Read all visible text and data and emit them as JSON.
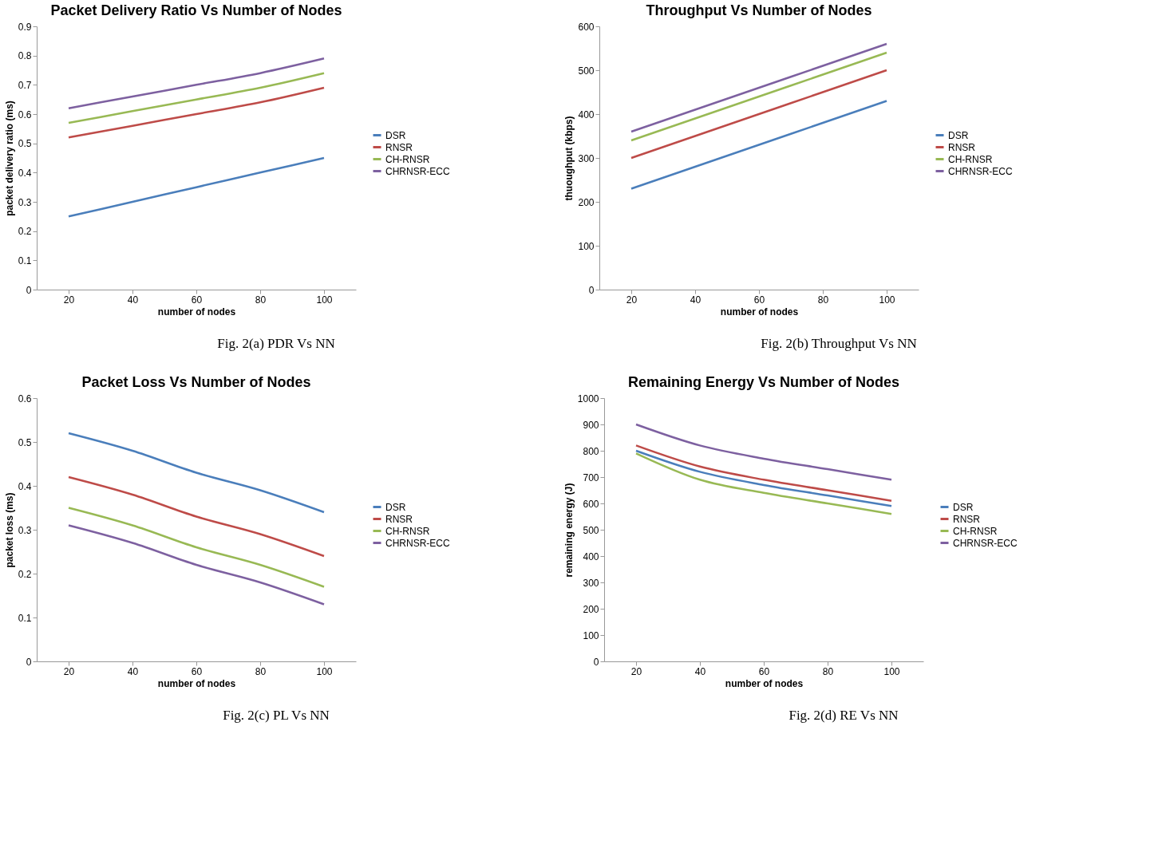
{
  "chart_data": [
    {
      "type": "line",
      "title": "Packet Delivery Ratio Vs Number of Nodes",
      "xlabel": "number of nodes",
      "ylabel": "packet delivery ratio (ms)",
      "categories": [
        "20",
        "40",
        "60",
        "80",
        "100"
      ],
      "ylim": [
        0,
        0.9
      ],
      "yticks": [
        0,
        0.1,
        0.2,
        0.3,
        0.4,
        0.5,
        0.6,
        0.7,
        0.8,
        0.9
      ],
      "legend": "right",
      "annotations": [
        "Fig. 2(a) PDR Vs NN"
      ],
      "series": [
        {
          "name": "DSR",
          "color": "#4a7ebb",
          "values": [
            0.25,
            0.3,
            0.35,
            0.4,
            0.45
          ]
        },
        {
          "name": "RNSR",
          "color": "#be4b48",
          "values": [
            0.52,
            0.56,
            0.6,
            0.64,
            0.69
          ]
        },
        {
          "name": "CH-RNSR",
          "color": "#98b954",
          "values": [
            0.57,
            0.61,
            0.65,
            0.69,
            0.74
          ]
        },
        {
          "name": "CHRNSR-ECC",
          "color": "#7d60a0",
          "values": [
            0.62,
            0.66,
            0.7,
            0.74,
            0.79
          ]
        }
      ]
    },
    {
      "type": "line",
      "title": "Throughput Vs Number of Nodes",
      "xlabel": "number of nodes",
      "ylabel": "thuoughput (kbps)",
      "categories": [
        "20",
        "40",
        "60",
        "80",
        "100"
      ],
      "ylim": [
        0,
        600
      ],
      "yticks": [
        0,
        100,
        200,
        300,
        400,
        500,
        600
      ],
      "legend": "right",
      "annotations": [
        "Fig. 2(b) Throughput Vs NN"
      ],
      "series": [
        {
          "name": "DSR",
          "color": "#4a7ebb",
          "values": [
            230,
            280,
            330,
            380,
            430
          ]
        },
        {
          "name": "RNSR",
          "color": "#be4b48",
          "values": [
            300,
            350,
            400,
            450,
            500
          ]
        },
        {
          "name": "CH-RNSR",
          "color": "#98b954",
          "values": [
            340,
            390,
            440,
            490,
            540
          ]
        },
        {
          "name": "CHRNSR-ECC",
          "color": "#7d60a0",
          "values": [
            360,
            410,
            460,
            510,
            560
          ]
        }
      ]
    },
    {
      "type": "line",
      "title": "Packet Loss Vs Number of Nodes",
      "xlabel": "number of nodes",
      "ylabel": "packet loss (ms)",
      "categories": [
        "20",
        "40",
        "60",
        "80",
        "100"
      ],
      "ylim": [
        0,
        0.6
      ],
      "yticks": [
        0,
        0.1,
        0.2,
        0.3,
        0.4,
        0.5,
        0.6
      ],
      "legend": "right",
      "annotations": [
        "Fig. 2(c) PL Vs NN"
      ],
      "series": [
        {
          "name": "DSR",
          "color": "#4a7ebb",
          "values": [
            0.52,
            0.48,
            0.43,
            0.39,
            0.34
          ]
        },
        {
          "name": "RNSR",
          "color": "#be4b48",
          "values": [
            0.42,
            0.38,
            0.33,
            0.29,
            0.24
          ]
        },
        {
          "name": "CH-RNSR",
          "color": "#98b954",
          "values": [
            0.35,
            0.31,
            0.26,
            0.22,
            0.17
          ]
        },
        {
          "name": "CHRNSR-ECC",
          "color": "#7d60a0",
          "values": [
            0.31,
            0.27,
            0.22,
            0.18,
            0.13
          ]
        }
      ]
    },
    {
      "type": "line",
      "title": "Remaining Energy Vs Number of Nodes",
      "xlabel": "number of nodes",
      "ylabel": "remaining energy (J)",
      "categories": [
        "20",
        "40",
        "60",
        "80",
        "100"
      ],
      "ylim": [
        0,
        1000
      ],
      "yticks": [
        0,
        100,
        200,
        300,
        400,
        500,
        600,
        700,
        800,
        900,
        1000
      ],
      "legend": "right",
      "annotations": [
        "Fig. 2(d) RE Vs NN"
      ],
      "series": [
        {
          "name": "DSR",
          "color": "#4a7ebb",
          "values": [
            800,
            720,
            670,
            630,
            590
          ]
        },
        {
          "name": "RNSR",
          "color": "#be4b48",
          "values": [
            820,
            740,
            690,
            650,
            610
          ]
        },
        {
          "name": "CH-RNSR",
          "color": "#98b954",
          "values": [
            790,
            690,
            640,
            600,
            560
          ]
        },
        {
          "name": "CHRNSR-ECC",
          "color": "#7d60a0",
          "values": [
            900,
            820,
            770,
            730,
            690
          ]
        }
      ]
    }
  ]
}
